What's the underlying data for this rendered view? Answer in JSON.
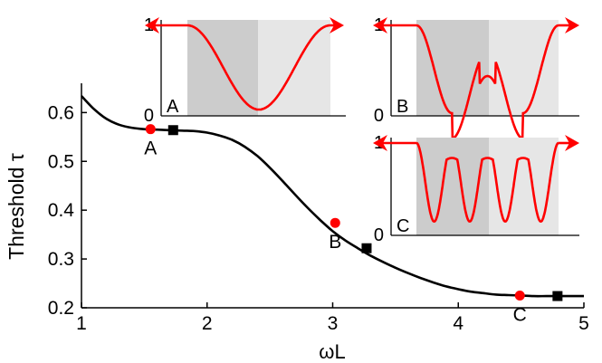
{
  "chart_data": [
    {
      "type": "line",
      "xlabel": "ωL",
      "ylabel": "Threshold τ",
      "xlim": [
        1,
        5
      ],
      "ylim": [
        0.2,
        0.66
      ],
      "xticks": [
        "1",
        "2",
        "3",
        "4",
        "5"
      ],
      "yticks": [
        "0.2",
        "0.3",
        "0.4",
        "0.5",
        "0.6"
      ],
      "grid": false,
      "legend": "none",
      "colors": {
        "curve": "#000000",
        "marker_circle": "#ff0000",
        "marker_square": "#000000"
      },
      "series": [
        {
          "x": [
            1.0,
            1.1,
            1.2,
            1.3,
            1.4,
            1.5,
            1.6,
            1.7,
            1.8,
            1.9,
            2.0,
            2.1,
            2.2,
            2.3,
            2.4,
            2.5,
            2.6,
            2.7,
            2.8,
            2.9,
            3.0,
            3.1,
            3.2,
            3.3,
            3.4,
            3.5,
            3.6,
            3.7,
            3.8,
            3.9,
            4.0,
            4.1,
            4.2,
            4.3,
            4.4,
            4.5,
            4.6,
            4.7,
            4.8,
            4.9,
            5.0
          ],
          "y": [
            0.634,
            0.607,
            0.587,
            0.575,
            0.569,
            0.566,
            0.565,
            0.564,
            0.563,
            0.562,
            0.559,
            0.553,
            0.544,
            0.53,
            0.511,
            0.487,
            0.46,
            0.432,
            0.405,
            0.38,
            0.357,
            0.338,
            0.322,
            0.307,
            0.294,
            0.282,
            0.271,
            0.261,
            0.252,
            0.244,
            0.238,
            0.233,
            0.23,
            0.227,
            0.226,
            0.225,
            0.224,
            0.224,
            0.224,
            0.224,
            0.224
          ]
        }
      ],
      "points": [
        {
          "label": "A",
          "x": 1.55,
          "y": 0.566,
          "marker": "circle"
        },
        {
          "label": "B",
          "x": 3.02,
          "y": 0.374,
          "marker": "circle"
        },
        {
          "label": "C",
          "x": 4.49,
          "y": 0.225,
          "marker": "circle"
        },
        {
          "label": "",
          "x": 1.73,
          "y": 0.564,
          "marker": "square"
        },
        {
          "label": "",
          "x": 3.27,
          "y": 0.322,
          "marker": "square"
        },
        {
          "label": "",
          "x": 4.79,
          "y": 0.224,
          "marker": "square"
        }
      ]
    },
    {
      "type": "line",
      "panel": "A",
      "yticks": [
        "0",
        "1"
      ],
      "ylim": [
        0,
        1
      ],
      "minima": 1,
      "colors": {
        "curve": "#ff0000",
        "band_dark": "#cccccc",
        "band_light": "#e6e6e6"
      }
    },
    {
      "type": "line",
      "panel": "B",
      "yticks": [
        "0",
        "1"
      ],
      "ylim": [
        0,
        1
      ],
      "minima": 2,
      "colors": {
        "curve": "#ff0000",
        "band_dark": "#cccccc",
        "band_light": "#e6e6e6"
      }
    },
    {
      "type": "line",
      "panel": "C",
      "yticks": [
        "0",
        "1"
      ],
      "ylim": [
        0,
        1
      ],
      "minima": 4,
      "colors": {
        "curve": "#ff0000",
        "band_dark": "#cccccc",
        "band_light": "#e6e6e6"
      }
    }
  ]
}
